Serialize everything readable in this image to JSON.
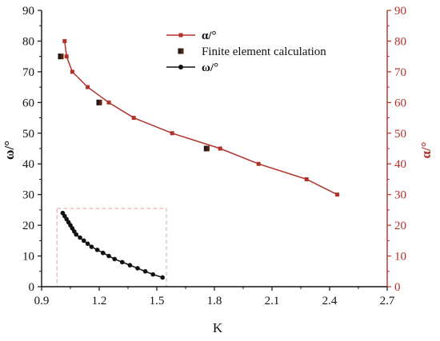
{
  "chart_data": {
    "type": "line",
    "xlabel": "K",
    "ylabel_left": "ω/°",
    "ylabel_right": "α/°",
    "xlim": [
      0.9,
      2.7
    ],
    "ylim_left": [
      0,
      90
    ],
    "ylim_right": [
      0,
      90
    ],
    "x_ticks": [
      "0.9",
      "1.2",
      "1.5",
      "1.8",
      "2.1",
      "2.4",
      "2.7"
    ],
    "y_ticks_left": [
      "0",
      "10",
      "20",
      "30",
      "40",
      "50",
      "60",
      "70",
      "80",
      "90"
    ],
    "y_ticks_right": [
      "0",
      "10",
      "20",
      "30",
      "40",
      "50",
      "60",
      "70",
      "80",
      "90"
    ],
    "grid": false,
    "legend_position": "top-center",
    "colors": {
      "alpha": "#b0322a",
      "fem": "#5a2010",
      "omega": "#111111",
      "right_axis": "#b0322a",
      "left_axis": "#111111",
      "inset_box": "#e8a0a0"
    },
    "series": [
      {
        "name": "α/°",
        "axis": "right",
        "marker": "square",
        "x": [
          1.02,
          1.03,
          1.06,
          1.14,
          1.25,
          1.38,
          1.58,
          1.83,
          2.03,
          2.28,
          2.44
        ],
        "y": [
          80,
          75,
          70,
          65,
          60,
          55,
          50,
          45,
          40,
          35,
          30
        ]
      },
      {
        "name": "Finite element calculation",
        "axis": "right",
        "marker": "square-large",
        "x": [
          1.0,
          1.2,
          1.76
        ],
        "y": [
          75,
          60,
          45
        ]
      },
      {
        "name": "ω/°",
        "axis": "left",
        "marker": "circle",
        "x": [
          1.01,
          1.02,
          1.03,
          1.04,
          1.05,
          1.06,
          1.07,
          1.08,
          1.1,
          1.12,
          1.14,
          1.16,
          1.19,
          1.22,
          1.25,
          1.28,
          1.32,
          1.36,
          1.4,
          1.44,
          1.48,
          1.53
        ],
        "y": [
          24,
          23,
          22,
          21,
          20,
          19,
          18,
          17,
          16,
          15,
          14,
          13,
          12,
          11,
          10,
          9,
          8,
          7,
          6,
          5,
          4,
          3
        ]
      }
    ],
    "inset_box": {
      "x": [
        0.98,
        1.55
      ],
      "y": [
        0,
        25.5
      ]
    }
  }
}
